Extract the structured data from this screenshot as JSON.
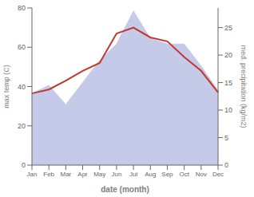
{
  "chart_data": {
    "type": "line",
    "xlabel": "date (month)",
    "ylabel": "max temp (C)",
    "y2label": "med. precipitation (kg/m2)",
    "categories": [
      "Jan",
      "Feb",
      "Mar",
      "Apr",
      "May",
      "Jun",
      "Jul",
      "Aug",
      "Sep",
      "Oct",
      "Nov",
      "Dec"
    ],
    "series": [
      {
        "type": "area",
        "axis": "y2",
        "color": "#c5cae9",
        "values": [
          13,
          14.5,
          11,
          15,
          19,
          22,
          28,
          23,
          22,
          22,
          18,
          13.5
        ]
      },
      {
        "type": "line",
        "axis": "y",
        "color": "#c0392b",
        "values": [
          36.5,
          38.5,
          43,
          48,
          52,
          67,
          70,
          65,
          63,
          55,
          48,
          37
        ]
      }
    ],
    "ylim": [
      0,
      80
    ],
    "yticks": [
      0,
      20,
      40,
      60,
      80
    ],
    "y2lim": [
      0,
      28.57
    ],
    "y2ticks": [
      0,
      5,
      10,
      15,
      20,
      25
    ],
    "grid": false
  }
}
